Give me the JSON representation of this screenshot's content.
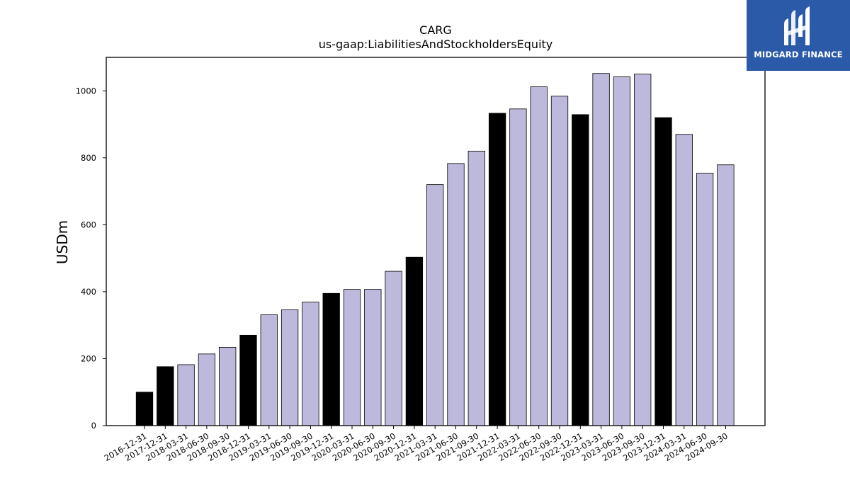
{
  "chart_data": {
    "type": "bar",
    "title": "CARG",
    "subtitle": "us-gaap:LiabilitiesAndStockholdersEquity",
    "xlabel": "",
    "ylabel": "USDm",
    "ylim": [
      0,
      1100
    ],
    "yticks": [
      0,
      200,
      400,
      600,
      800,
      1000
    ],
    "grid": false,
    "categories": [
      "2016-12-31",
      "2017-12-31",
      "2018-03-31",
      "2018-06-30",
      "2018-09-30",
      "2018-12-31",
      "2019-03-31",
      "2019-06-30",
      "2019-09-30",
      "2019-12-31",
      "2020-03-31",
      "2020-06-30",
      "2020-09-30",
      "2020-12-31",
      "2021-03-31",
      "2021-06-30",
      "2021-09-30",
      "2021-12-31",
      "2022-03-31",
      "2022-06-30",
      "2022-09-30",
      "2022-12-31",
      "2023-03-31",
      "2023-06-30",
      "2023-09-30",
      "2023-12-31",
      "2024-03-31",
      "2024-06-30",
      "2024-09-30"
    ],
    "values": [
      100,
      176,
      182,
      214,
      234,
      270,
      331,
      346,
      369,
      395,
      407,
      407,
      461,
      503,
      720,
      783,
      820,
      933,
      946,
      1012,
      984,
      929,
      1052,
      1042,
      1050,
      920,
      870,
      754,
      779
    ],
    "annual_flags": [
      true,
      true,
      false,
      false,
      false,
      true,
      false,
      false,
      false,
      true,
      false,
      false,
      false,
      true,
      false,
      false,
      false,
      true,
      false,
      false,
      false,
      true,
      false,
      false,
      false,
      true,
      false,
      false,
      false
    ],
    "colors": {
      "annual": "#000000",
      "quarterly": "#bcb9dc",
      "edge": "#000000"
    }
  },
  "logo": {
    "text": "MIDGARD FINANCE",
    "background": "#2b5aa8"
  }
}
